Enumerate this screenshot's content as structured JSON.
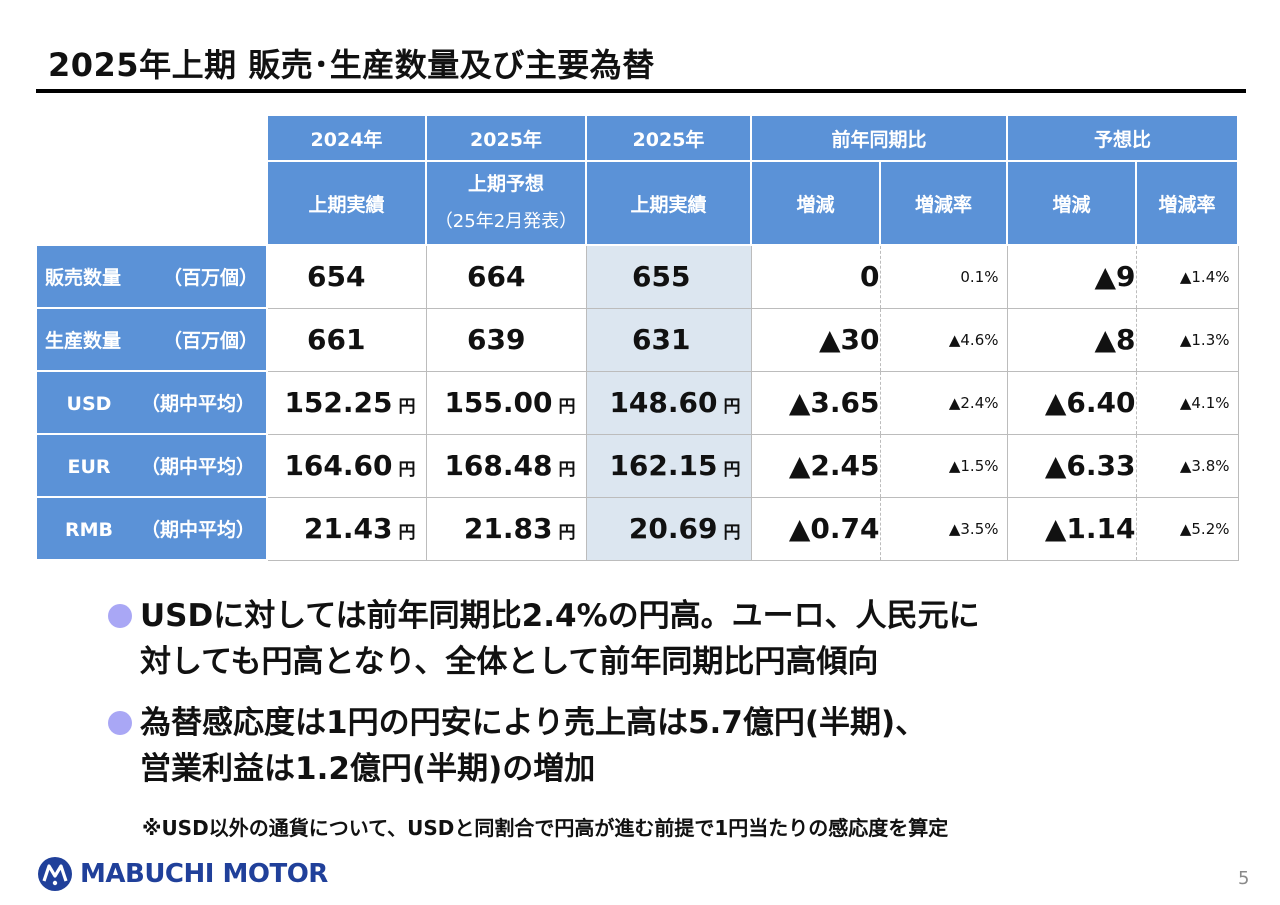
{
  "title": "2025年上期 販売･生産数量及び主要為替",
  "table": {
    "header_top": {
      "col1": "2024年",
      "col2": "2025年",
      "col3": "2025年",
      "yoy": "前年同期比",
      "forecast": "予想比"
    },
    "header_sub": {
      "col1": "上期実績",
      "col2_line1": "上期予想",
      "col2_line2": "（25年2月発表）",
      "col3": "上期実績",
      "yoy_diff": "増減",
      "yoy_rate": "増減率",
      "fc_diff": "増減",
      "fc_rate": "増減率"
    },
    "rows": [
      {
        "label": "販売数量",
        "unit": "（百万個）",
        "v2024": "654",
        "v2025f": "664",
        "v2025": "655",
        "yoy_diff": "0",
        "yoy_rate": "0.1%",
        "fc_diff": "▲9",
        "fc_rate": "▲1.4%"
      },
      {
        "label": "生産数量",
        "unit": "（百万個）",
        "v2024": "661",
        "v2025f": "639",
        "v2025": "631",
        "yoy_diff": "▲30",
        "yoy_rate": "▲4.6%",
        "fc_diff": "▲8",
        "fc_rate": "▲1.3%"
      },
      {
        "label": "USD",
        "unit": "（期中平均）",
        "v2024": "152.25",
        "v2025f": "155.00",
        "v2025": "148.60",
        "yoy_diff": "▲3.65",
        "yoy_rate": "▲2.4%",
        "fc_diff": "▲6.40",
        "fc_rate": "▲4.1%"
      },
      {
        "label": "EUR",
        "unit": "（期中平均）",
        "v2024": "164.60",
        "v2025f": "168.48",
        "v2025": "162.15",
        "yoy_diff": "▲2.45",
        "yoy_rate": "▲1.5%",
        "fc_diff": "▲6.33",
        "fc_rate": "▲3.8%"
      },
      {
        "label": "RMB",
        "unit": "（期中平均）",
        "v2024": "21.43",
        "v2025f": "21.83",
        "v2025": "20.69",
        "yoy_diff": "▲0.74",
        "yoy_rate": "▲3.5%",
        "fc_diff": "▲1.14",
        "fc_rate": "▲5.2%"
      }
    ],
    "yen": "円"
  },
  "bullets": [
    {
      "line1": "USDに対しては前年同期比2.4%の円高。ユーロ、人民元に",
      "line2": "対しても円高となり、全体として前年同期比円高傾向"
    },
    {
      "line1": "為替感応度は1円の円安により売上高は5.7億円(半期)、",
      "line2": "営業利益は1.2億円(半期)の増加"
    }
  ],
  "note": "※USD以外の通貨について、USDと同割合で円高が進む前提で1円当たりの感応度を算定",
  "logo": "MABUCHI MOTOR",
  "logo_icon": "mabuchi-logo-icon",
  "page_number": "5",
  "colors": {
    "header_blue": "#5b92d7",
    "highlight": "#dce6f0",
    "bullet_dot": "#a9a7f5",
    "logo_blue": "#20409a"
  }
}
